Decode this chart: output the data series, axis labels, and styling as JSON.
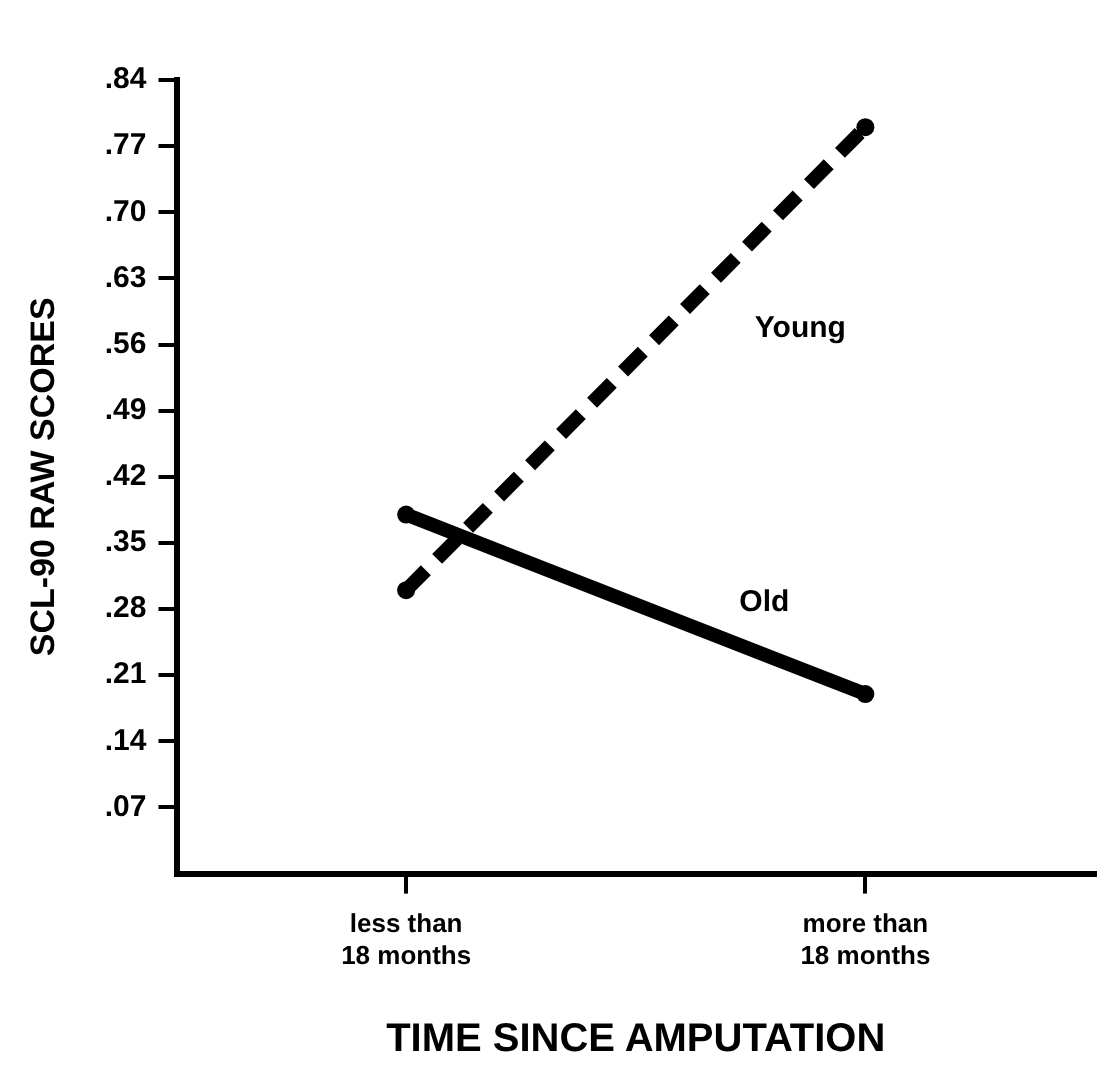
{
  "chart_data": {
    "type": "line",
    "xlabel": "TIME SINCE AMPUTATION",
    "ylabel": "SCL-90 RAW SCORES",
    "categories": [
      "less than\n18 months",
      "more than\n18 months"
    ],
    "series": [
      {
        "name": "Young",
        "color": "#000000",
        "values": [
          0.3,
          0.79
        ],
        "line_style": "dashed"
      },
      {
        "name": "Old",
        "color": "#000000",
        "values": [
          0.38,
          0.19
        ],
        "line_style": "solid"
      }
    ],
    "ylim": [
      0,
      0.84
    ],
    "yticks": [
      {
        "value": 0.07,
        "label": ".07"
      },
      {
        "value": 0.14,
        "label": ".14"
      },
      {
        "value": 0.21,
        "label": ".21"
      },
      {
        "value": 0.28,
        "label": ".28"
      },
      {
        "value": 0.35,
        "label": ".35"
      },
      {
        "value": 0.42,
        "label": ".42"
      },
      {
        "value": 0.49,
        "label": ".49"
      },
      {
        "value": 0.56,
        "label": ".56"
      },
      {
        "value": 0.63,
        "label": ".63"
      },
      {
        "value": 0.7,
        "label": ".70"
      },
      {
        "value": 0.77,
        "label": ".77"
      },
      {
        "value": 0.84,
        "label": ".84"
      }
    ],
    "grid": false,
    "legend": false,
    "marker": "circle"
  }
}
